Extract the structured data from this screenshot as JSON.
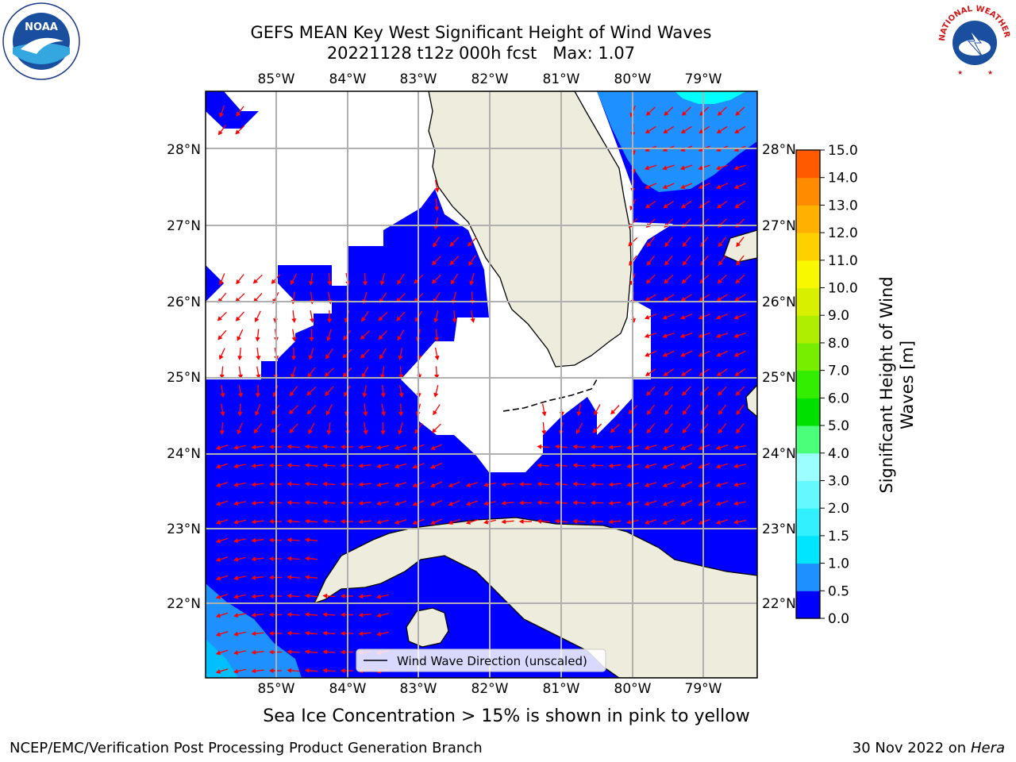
{
  "title_line1": "GEFS MEAN Key West Significant Height of Wind Waves",
  "title_line2": "20221128 t12z 000h fcst   Max: 1.07",
  "lon_labels": [
    "85°W",
    "84°W",
    "83°W",
    "82°W",
    "81°W",
    "80°W",
    "79°W"
  ],
  "lat_labels": [
    "28°N",
    "27°N",
    "26°N",
    "25°N",
    "24°N",
    "23°N",
    "22°N"
  ],
  "legend_label": "Wind Wave Direction (unscaled)",
  "colorbar": {
    "label_line1": "Significant Height of Wind",
    "label_line2": "Waves [m]",
    "ticks": [
      "0.0",
      "0.5",
      "1.0",
      "1.5",
      "2.0",
      "3.0",
      "4.0",
      "5.0",
      "6.0",
      "7.0",
      "8.0",
      "9.0",
      "10.0",
      "11.0",
      "12.0",
      "13.0",
      "14.0",
      "15.0"
    ],
    "colors": [
      "#0000ff",
      "#1e90ff",
      "#00e5ff",
      "#33f0ff",
      "#66f8ff",
      "#9cffff",
      "#4cff7a",
      "#00e000",
      "#33ee00",
      "#77ee00",
      "#b0ee00",
      "#d8f000",
      "#f8f800",
      "#ffd000",
      "#ffb000",
      "#ff8c00",
      "#ff5a00",
      "#ff2a00"
    ]
  },
  "colors": {
    "ocean_blue": "#0000ff",
    "light_blue": "#1e90ff",
    "cyan": "#00e5ff",
    "land": "#eeecdc",
    "arrow": "#ff0000"
  },
  "sea_ice_note": "Sea Ice Concentration > 15% is shown in pink to yellow",
  "footer_left": "NCEP/EMC/Verification Post Processing Product Generation Branch",
  "footer_right_date": "30 Nov 2022 on",
  "footer_right_host": "Hera",
  "logos": {
    "left": "NOAA",
    "right": "NATIONAL WEATHER SERVICE"
  }
}
